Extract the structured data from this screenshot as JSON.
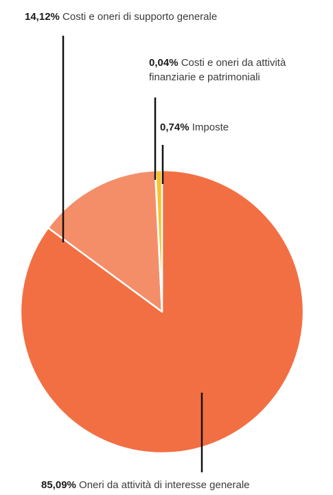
{
  "chart_data": {
    "type": "pie",
    "slices": [
      {
        "label": "Oneri da attività di interesse generale",
        "value": 85.09,
        "value_text": "85,09%",
        "color": "#F26F43"
      },
      {
        "label": "Costi e oneri di supporto generale",
        "value": 14.12,
        "value_text": "14,12%",
        "color": "#F48E69"
      },
      {
        "label_lines": [
          "Costi e oneri da attività",
          "finanziarie e patrimoniali"
        ],
        "label": "Costi e oneri da attività finanziarie e patrimoniali",
        "value": 0.04,
        "value_text": "0,04%",
        "color": "#F7B08F"
      },
      {
        "label": "Imposte",
        "value": 0.74,
        "value_text": "0,74%",
        "color": "#F8C22E"
      }
    ],
    "start_angle": "12 o'clock",
    "direction": "clockwise",
    "legend": "none"
  }
}
